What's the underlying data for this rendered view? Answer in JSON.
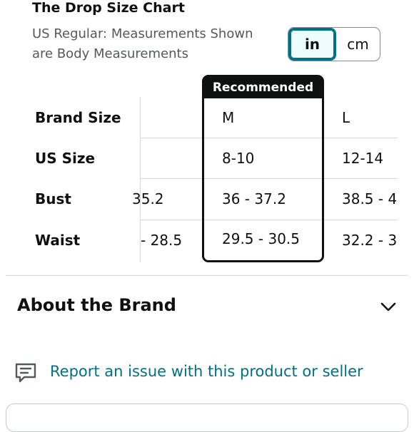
{
  "size_chart": {
    "title": "The Drop Size Chart",
    "subtitle": "US Regular: Measurements Shown are Body Measurements",
    "units": {
      "in_label": "in",
      "cm_label": "cm",
      "selected": "in"
    },
    "recommended_label": "Recommended",
    "row_labels": [
      "Brand Size",
      "US Size",
      "Bust",
      "Waist"
    ],
    "columns": [
      {
        "brand_size": "",
        "us_size": "",
        "bust": "35.2",
        "waist": "- 28.5"
      },
      {
        "brand_size": "M",
        "us_size": "8-10",
        "bust": "36 - 37.2",
        "waist": "29.5 - 30.5"
      },
      {
        "brand_size": "L",
        "us_size": "12-14",
        "bust": "38.5 - 4",
        "waist": "32.2 - 3"
      }
    ]
  },
  "about": {
    "title": "About the Brand",
    "icon": "chevron-down-icon"
  },
  "report": {
    "label": "Report an issue with this product or seller",
    "icon": "report-icon"
  },
  "colors": {
    "link": "#007185",
    "text": "#0f1111",
    "secondary_text": "#565959",
    "divider": "#d5d9d9",
    "toggle_active_border": "#007185"
  }
}
